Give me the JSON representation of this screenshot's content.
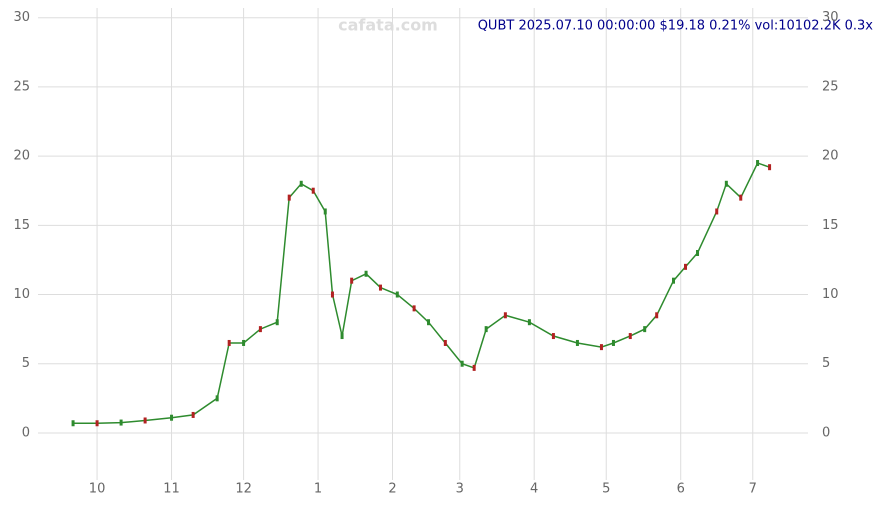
{
  "chart_data": {
    "type": "line",
    "watermark": "cafata.com",
    "title": "QUBT 2025.07.10 00:00:00 $19.18 0.21% vol:10102.2K 0.3x",
    "series": [
      {
        "name": "QUBT",
        "color": "#2e8b2e",
        "x": [
          -10,
          0,
          10,
          20,
          31,
          40,
          50,
          55,
          61,
          68,
          75,
          80,
          85,
          90,
          95,
          98,
          102,
          106,
          112,
          118,
          125,
          132,
          138,
          145,
          152,
          157,
          162,
          170,
          180,
          190,
          200,
          210,
          215,
          222,
          228,
          233,
          240,
          245,
          250,
          258,
          262,
          268,
          275,
          280
        ],
        "values": [
          0.7,
          0.7,
          0.75,
          0.9,
          1.1,
          1.3,
          2.5,
          6.5,
          6.5,
          7.5,
          8,
          17,
          18,
          17.5,
          16,
          10,
          7,
          11,
          11.5,
          10.5,
          10,
          9,
          8,
          6.5,
          5,
          4.7,
          7.5,
          8.5,
          8,
          7,
          6.5,
          6.2,
          6.5,
          7,
          7.5,
          8.5,
          11,
          12,
          13,
          16,
          18,
          17,
          19.5,
          19.2
        ]
      }
    ],
    "xlim": [
      -24.6,
      296
    ],
    "xticks": [
      {
        "value": 0,
        "label": "10"
      },
      {
        "value": 31,
        "label": "11"
      },
      {
        "value": 61,
        "label": "12"
      },
      {
        "value": 92,
        "label": "1"
      },
      {
        "value": 123,
        "label": "2"
      },
      {
        "value": 151,
        "label": "3"
      },
      {
        "value": 182,
        "label": "4"
      },
      {
        "value": 212,
        "label": "5"
      },
      {
        "value": 243,
        "label": "6"
      },
      {
        "value": 273,
        "label": "7"
      }
    ],
    "ylim": [
      -3.4,
      30.7
    ],
    "yticks": [
      0,
      5,
      10,
      15,
      20,
      25,
      30
    ],
    "grid": true
  }
}
